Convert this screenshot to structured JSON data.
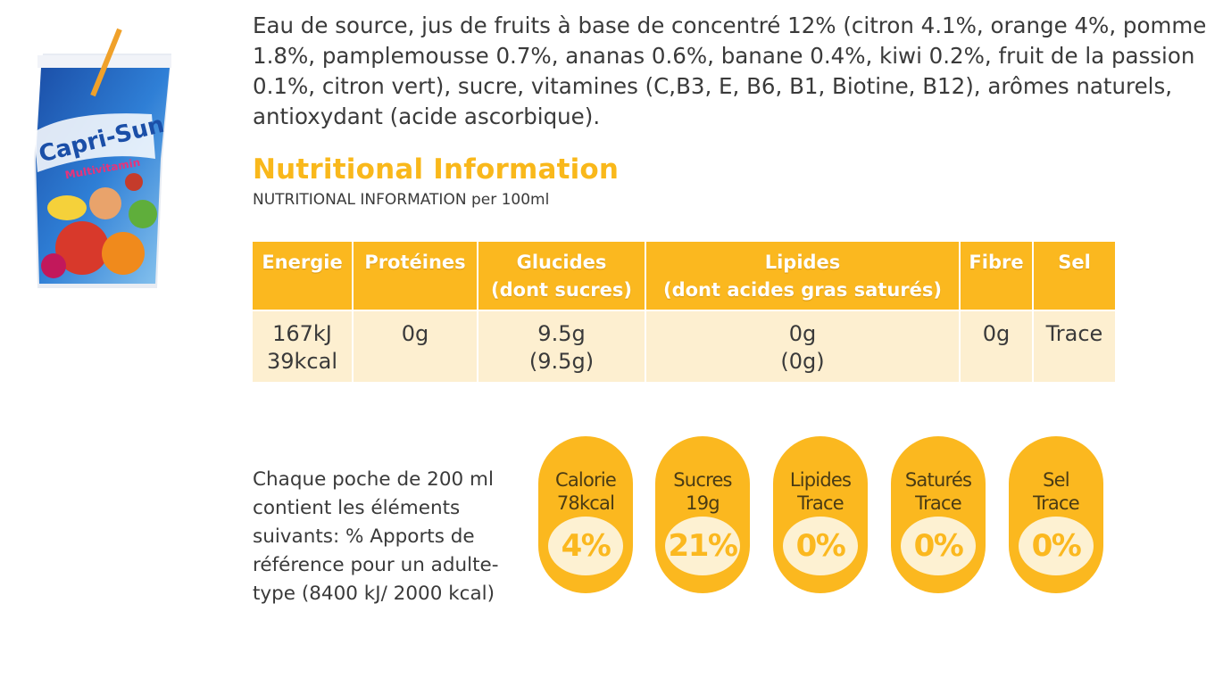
{
  "product": {
    "brand": "Capri-Sun",
    "variant": "Multivitamin"
  },
  "ingredients": "Eau de source, jus de fruits à base de concentré 12% (citron 4.1%, orange 4%, pomme 1.8%, pamplemousse 0.7%, ananas 0.6%, banane 0.4%, kiwi 0.2%, fruit de la passion 0.1%, citron vert), sucre, vitamines (C,B3, E, B6, B1, Biotine, B12), arômes naturels, antioxydant (acide ascorbique).",
  "nutrition": {
    "title": "Nutritional Information",
    "subtitle": "NUTRITIONAL INFORMATION per 100ml",
    "headers": [
      [
        "Energie"
      ],
      [
        "Protéines"
      ],
      [
        "Glucides",
        "(dont sucres)"
      ],
      [
        "Lipides",
        "(dont acides gras saturés)"
      ],
      [
        "Fibre"
      ],
      [
        "Sel"
      ]
    ],
    "values": [
      [
        "167kJ",
        "39kcal"
      ],
      [
        "0g"
      ],
      [
        "9.5g",
        "(9.5g)"
      ],
      [
        "0g",
        "(0g)"
      ],
      [
        "0g"
      ],
      [
        "Trace"
      ]
    ]
  },
  "portion": {
    "text": "Chaque poche de 200 ml contient les éléments suivants: % Apports de référence pour un adulte-type (8400 kJ/ 2000 kcal)",
    "badges": [
      {
        "name": "Calorie",
        "amount": "78kcal",
        "percent": "4%"
      },
      {
        "name": "Sucres",
        "amount": "19g",
        "percent": "21%"
      },
      {
        "name": "Lipides",
        "amount": "Trace",
        "percent": "0%"
      },
      {
        "name": "Saturés",
        "amount": "Trace",
        "percent": "0%"
      },
      {
        "name": "Sel",
        "amount": "Trace",
        "percent": "0%"
      }
    ]
  },
  "colors": {
    "accent": "#fbb81f",
    "table_body": "#fdefd0",
    "text": "#3a3a3a"
  }
}
